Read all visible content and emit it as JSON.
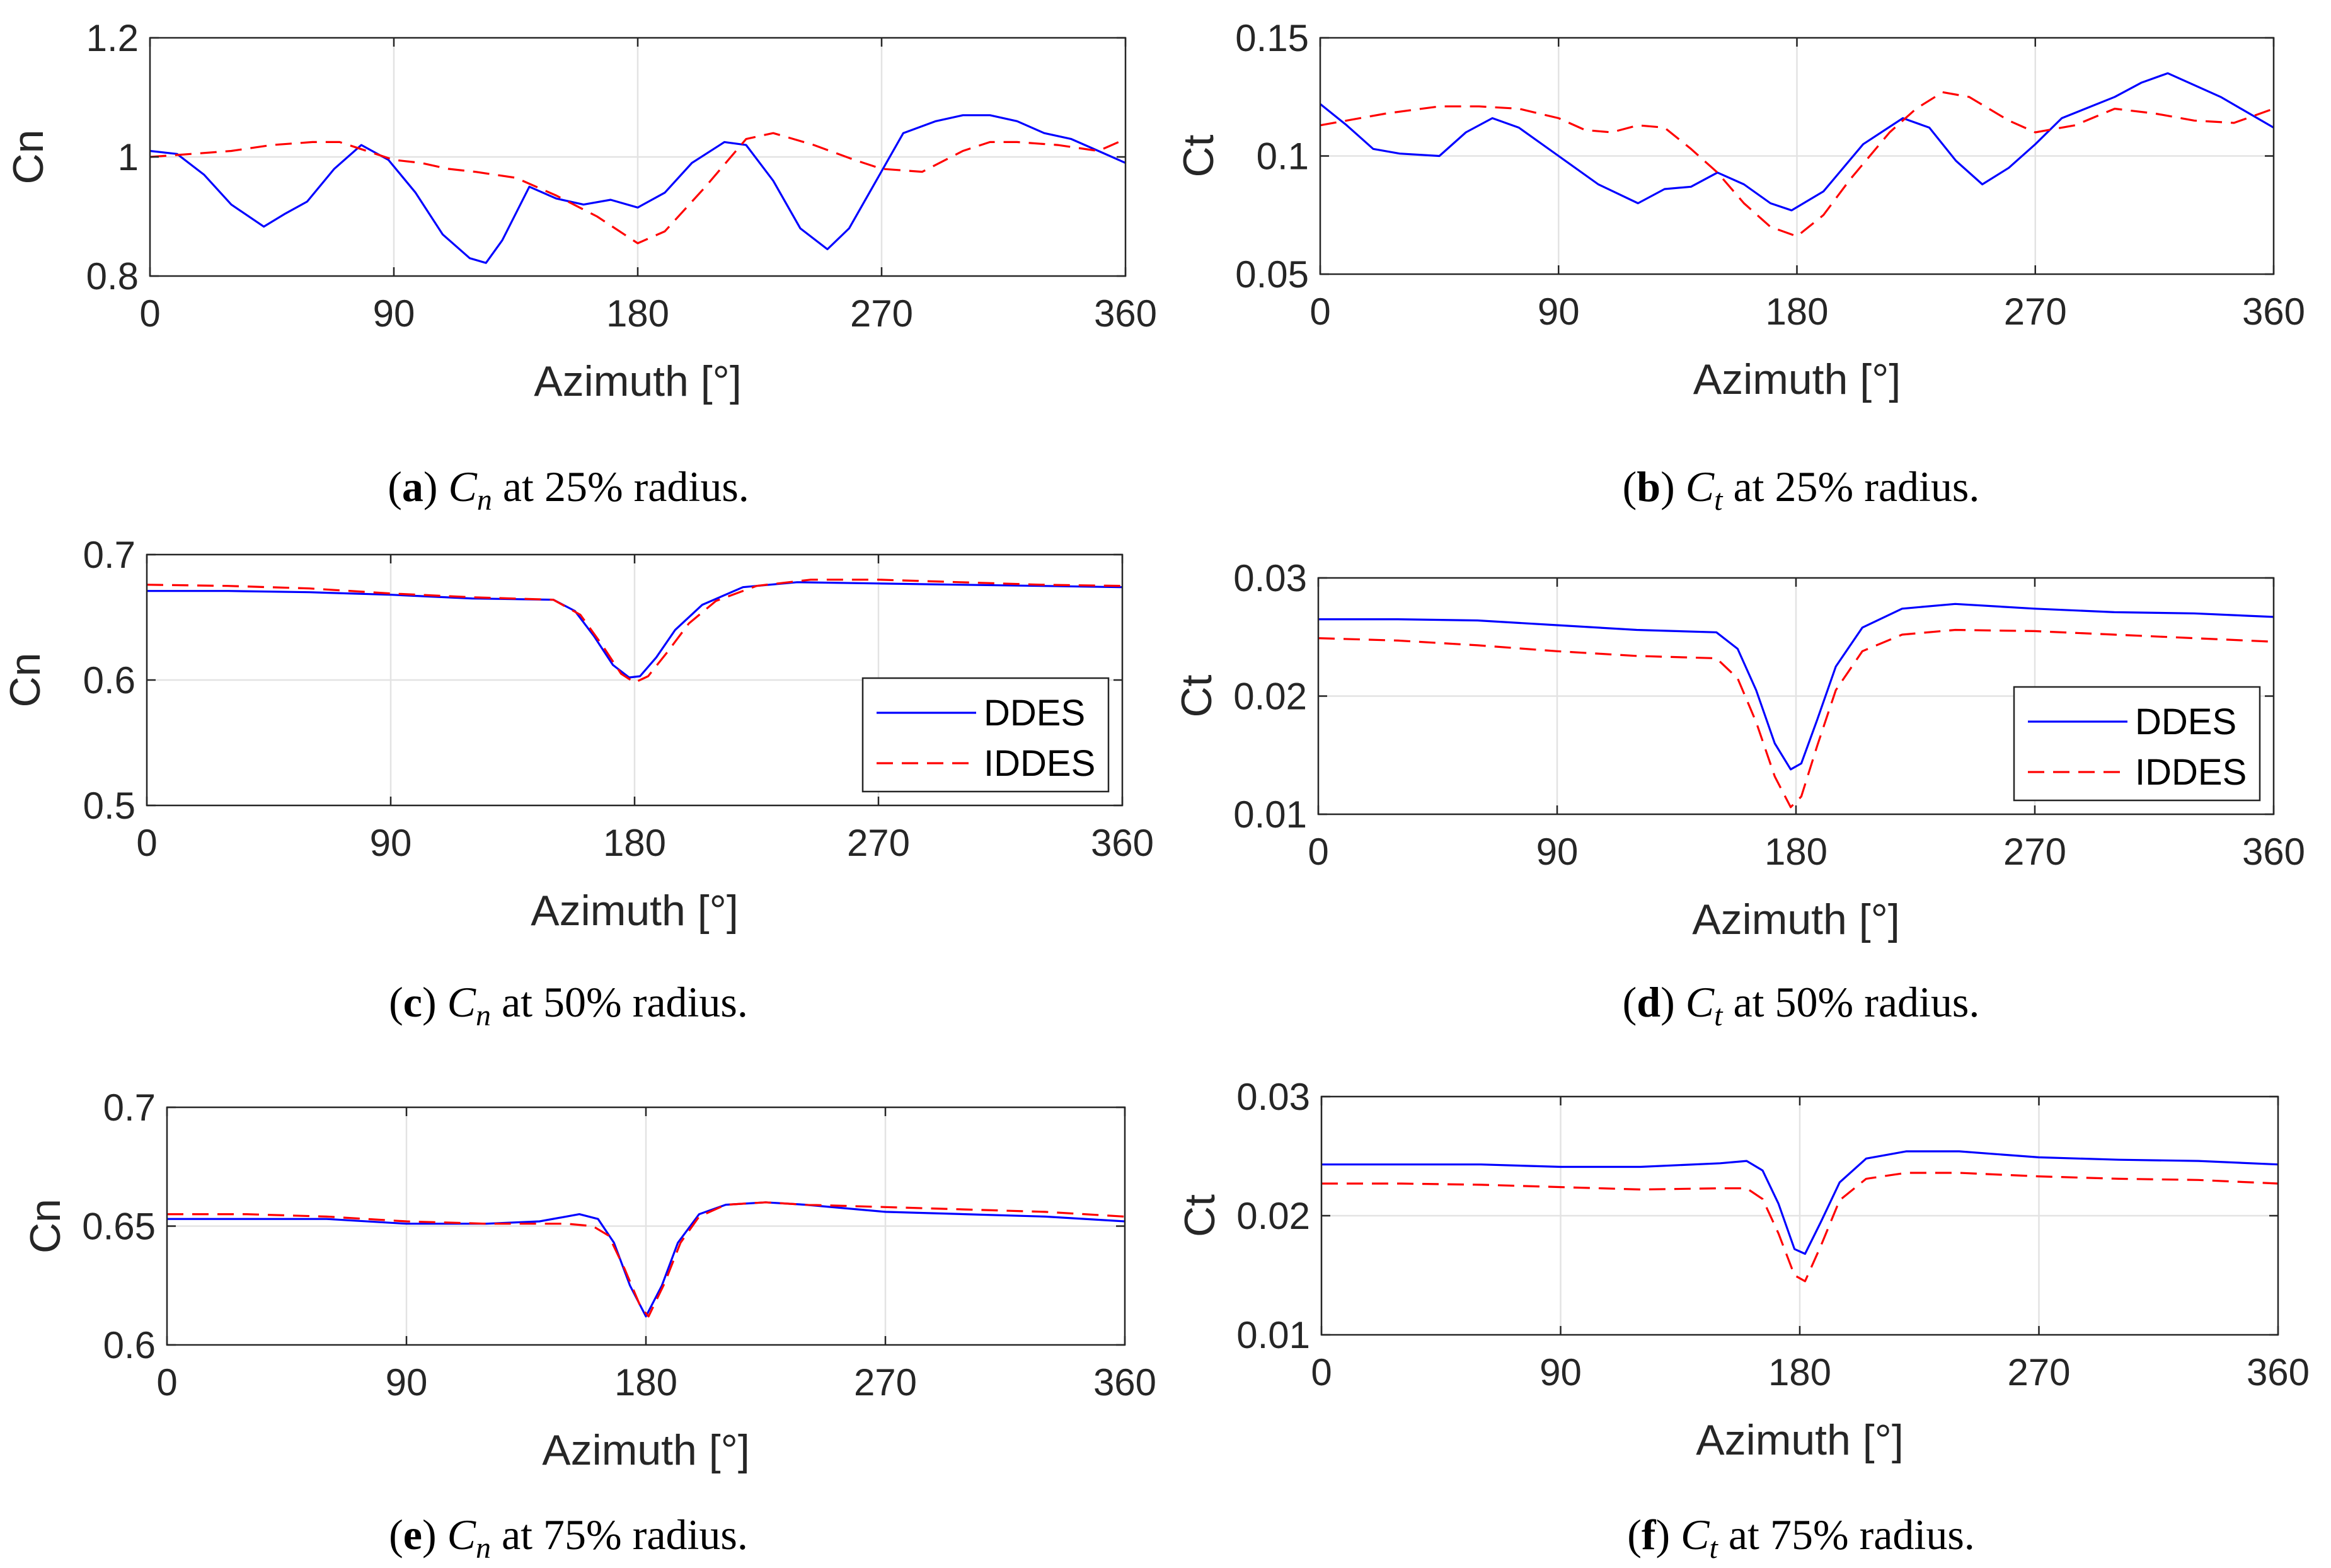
{
  "colors": {
    "ddes": "#0000ff",
    "iddes": "#ff0000",
    "grid": "#e3e3e3",
    "axis": "#262626"
  },
  "legend_entries": [
    "DDES",
    "IDDES"
  ],
  "chart_data": [
    {
      "id": "a",
      "type": "line",
      "caption": {
        "letter": "a",
        "symbol": "C",
        "sub": "n",
        "rest": " at 25% radius."
      },
      "xlabel": "Azimuth [°]",
      "ylabel": "Cn",
      "xlim": [
        0,
        360
      ],
      "ylim": [
        0.8,
        1.2
      ],
      "xticks": [
        "0",
        "90",
        "180",
        "270",
        "360"
      ],
      "yticks": [
        "0.8",
        "1",
        "1.2"
      ],
      "ytick_values": [
        0.8,
        1.0,
        1.2
      ],
      "legend": null,
      "series": [
        {
          "name": "DDES",
          "style": "solid",
          "x": [
            0,
            10,
            20,
            30,
            42,
            50,
            58,
            68,
            78,
            88,
            98,
            108,
            118,
            124,
            130,
            140,
            150,
            160,
            170,
            180,
            190,
            200,
            212,
            220,
            230,
            240,
            250,
            258,
            268,
            278,
            290,
            300,
            310,
            320,
            330,
            340,
            350,
            360
          ],
          "y": [
            1.01,
            1.005,
            0.97,
            0.92,
            0.883,
            0.905,
            0.925,
            0.98,
            1.02,
            0.995,
            0.94,
            0.87,
            0.83,
            0.822,
            0.86,
            0.95,
            0.93,
            0.92,
            0.928,
            0.915,
            0.94,
            0.99,
            1.025,
            1.02,
            0.96,
            0.88,
            0.845,
            0.88,
            0.96,
            1.04,
            1.06,
            1.07,
            1.07,
            1.06,
            1.04,
            1.03,
            1.01,
            0.99
          ]
        },
        {
          "name": "IDDES",
          "style": "dashed",
          "x": [
            0,
            15,
            30,
            45,
            60,
            70,
            80,
            90,
            100,
            110,
            120,
            135,
            150,
            165,
            180,
            190,
            205,
            220,
            230,
            245,
            260,
            270,
            285,
            300,
            310,
            320,
            335,
            350,
            360
          ],
          "y": [
            1.0,
            1.005,
            1.01,
            1.02,
            1.025,
            1.025,
            1.01,
            0.995,
            0.99,
            0.98,
            0.975,
            0.965,
            0.935,
            0.9,
            0.855,
            0.875,
            0.95,
            1.03,
            1.04,
            1.02,
            0.995,
            0.98,
            0.975,
            1.01,
            1.025,
            1.025,
            1.02,
            1.01,
            1.03
          ]
        }
      ]
    },
    {
      "id": "b",
      "type": "line",
      "caption": {
        "letter": "b",
        "symbol": "C",
        "sub": "t",
        "rest": " at 25% radius."
      },
      "xlabel": "Azimuth [°]",
      "ylabel": "Ct",
      "xlim": [
        0,
        360
      ],
      "ylim": [
        0.05,
        0.15
      ],
      "xticks": [
        "0",
        "90",
        "180",
        "270",
        "360"
      ],
      "yticks": [
        "0.05",
        "0.1",
        "0.15"
      ],
      "ytick_values": [
        0.05,
        0.1,
        0.15
      ],
      "legend": null,
      "series": [
        {
          "name": "DDES",
          "style": "solid",
          "x": [
            0,
            10,
            20,
            30,
            45,
            55,
            65,
            75,
            90,
            105,
            120,
            130,
            140,
            150,
            160,
            170,
            178,
            190,
            205,
            220,
            230,
            240,
            250,
            260,
            270,
            280,
            300,
            310,
            320,
            340,
            360
          ],
          "y": [
            0.122,
            0.113,
            0.103,
            0.101,
            0.1,
            0.11,
            0.116,
            0.112,
            0.1,
            0.088,
            0.08,
            0.086,
            0.087,
            0.093,
            0.088,
            0.08,
            0.077,
            0.085,
            0.105,
            0.116,
            0.112,
            0.098,
            0.088,
            0.095,
            0.105,
            0.116,
            0.125,
            0.131,
            0.135,
            0.125,
            0.112
          ]
        },
        {
          "name": "IDDES",
          "style": "dashed",
          "x": [
            0,
            10,
            25,
            45,
            60,
            75,
            90,
            100,
            110,
            120,
            130,
            140,
            150,
            160,
            170,
            180,
            190,
            200,
            215,
            225,
            235,
            245,
            260,
            270,
            285,
            300,
            315,
            330,
            345,
            360
          ],
          "y": [
            0.113,
            0.115,
            0.118,
            0.121,
            0.121,
            0.12,
            0.116,
            0.111,
            0.11,
            0.113,
            0.112,
            0.103,
            0.093,
            0.08,
            0.07,
            0.066,
            0.075,
            0.09,
            0.11,
            0.12,
            0.127,
            0.125,
            0.115,
            0.11,
            0.113,
            0.12,
            0.118,
            0.115,
            0.114,
            0.12
          ]
        }
      ]
    },
    {
      "id": "c",
      "type": "line",
      "caption": {
        "letter": "c",
        "symbol": "C",
        "sub": "n",
        "rest": " at 50% radius."
      },
      "xlabel": "Azimuth [°]",
      "ylabel": "Cn",
      "xlim": [
        0,
        360
      ],
      "ylim": [
        0.5,
        0.7
      ],
      "xticks": [
        "0",
        "90",
        "180",
        "270",
        "360"
      ],
      "yticks": [
        "0.5",
        "0.6",
        "0.7"
      ],
      "ytick_values": [
        0.5,
        0.6,
        0.7
      ],
      "legend": "lower-right",
      "series": [
        {
          "name": "DDES",
          "style": "solid",
          "x": [
            0,
            30,
            60,
            90,
            120,
            150,
            158,
            165,
            172,
            178,
            182,
            188,
            195,
            205,
            220,
            240,
            270,
            300,
            330,
            360
          ],
          "y": [
            0.671,
            0.671,
            0.67,
            0.668,
            0.665,
            0.664,
            0.655,
            0.635,
            0.612,
            0.602,
            0.603,
            0.618,
            0.64,
            0.66,
            0.674,
            0.678,
            0.677,
            0.676,
            0.675,
            0.674
          ]
        },
        {
          "name": "IDDES",
          "style": "dashed",
          "x": [
            0,
            30,
            60,
            90,
            120,
            150,
            160,
            168,
            175,
            180,
            185,
            192,
            200,
            210,
            225,
            245,
            270,
            300,
            330,
            360
          ],
          "y": [
            0.676,
            0.675,
            0.673,
            0.669,
            0.666,
            0.664,
            0.652,
            0.628,
            0.605,
            0.598,
            0.603,
            0.622,
            0.645,
            0.663,
            0.675,
            0.68,
            0.68,
            0.678,
            0.676,
            0.675
          ]
        }
      ]
    },
    {
      "id": "d",
      "type": "line",
      "caption": {
        "letter": "d",
        "symbol": "C",
        "sub": "t",
        "rest": " at 50% radius."
      },
      "xlabel": "Azimuth [°]",
      "ylabel": "Ct",
      "xlim": [
        0,
        360
      ],
      "ylim": [
        0.01,
        0.03
      ],
      "xticks": [
        "0",
        "90",
        "180",
        "270",
        "360"
      ],
      "yticks": [
        "0.01",
        "0.02",
        "0.03"
      ],
      "ytick_values": [
        0.01,
        0.02,
        0.03
      ],
      "legend": "lower-right",
      "series": [
        {
          "name": "DDES",
          "style": "solid",
          "x": [
            0,
            30,
            60,
            90,
            120,
            150,
            158,
            165,
            172,
            178,
            182,
            188,
            195,
            205,
            220,
            240,
            270,
            300,
            330,
            360
          ],
          "y": [
            0.0265,
            0.0265,
            0.0264,
            0.026,
            0.0256,
            0.0254,
            0.024,
            0.0205,
            0.016,
            0.0138,
            0.0143,
            0.018,
            0.0225,
            0.0258,
            0.0274,
            0.0278,
            0.0274,
            0.0271,
            0.027,
            0.0267
          ]
        },
        {
          "name": "IDDES",
          "style": "dashed",
          "x": [
            0,
            30,
            60,
            90,
            120,
            150,
            158,
            165,
            172,
            178,
            182,
            188,
            195,
            205,
            220,
            240,
            270,
            300,
            330,
            360
          ],
          "y": [
            0.0249,
            0.0247,
            0.0243,
            0.0238,
            0.0234,
            0.0232,
            0.0215,
            0.0178,
            0.0132,
            0.0106,
            0.0115,
            0.0158,
            0.0205,
            0.0238,
            0.0252,
            0.0256,
            0.0255,
            0.0252,
            0.0249,
            0.0246
          ]
        }
      ]
    },
    {
      "id": "e",
      "type": "line",
      "caption": {
        "letter": "e",
        "symbol": "C",
        "sub": "n",
        "rest": " at 75% radius."
      },
      "xlabel": "Azimuth [°]",
      "ylabel": "Cn",
      "xlim": [
        0,
        360
      ],
      "ylim": [
        0.6,
        0.7
      ],
      "xticks": [
        "0",
        "90",
        "180",
        "270",
        "360"
      ],
      "yticks": [
        "0.6",
        "0.65",
        "0.7"
      ],
      "ytick_values": [
        0.6,
        0.65,
        0.7
      ],
      "legend": null,
      "series": [
        {
          "name": "DDES",
          "style": "solid",
          "x": [
            0,
            30,
            60,
            90,
            120,
            140,
            155,
            162,
            168,
            174,
            180,
            186,
            192,
            200,
            210,
            225,
            240,
            270,
            300,
            330,
            360
          ],
          "y": [
            0.653,
            0.653,
            0.653,
            0.651,
            0.651,
            0.652,
            0.655,
            0.653,
            0.643,
            0.625,
            0.612,
            0.625,
            0.643,
            0.655,
            0.659,
            0.66,
            0.659,
            0.656,
            0.655,
            0.654,
            0.652
          ]
        },
        {
          "name": "IDDES",
          "style": "dashed",
          "x": [
            0,
            30,
            60,
            90,
            120,
            150,
            160,
            166,
            172,
            178,
            181,
            187,
            193,
            200,
            210,
            225,
            240,
            270,
            300,
            330,
            360
          ],
          "y": [
            0.655,
            0.655,
            0.654,
            0.652,
            0.651,
            0.651,
            0.65,
            0.646,
            0.632,
            0.616,
            0.612,
            0.626,
            0.643,
            0.654,
            0.659,
            0.66,
            0.659,
            0.658,
            0.657,
            0.656,
            0.654
          ]
        }
      ]
    },
    {
      "id": "f",
      "type": "line",
      "caption": {
        "letter": "f",
        "symbol": "C",
        "sub": "t",
        "rest": " at 75% radius."
      },
      "xlabel": "Azimuth [°]",
      "ylabel": "Ct",
      "xlim": [
        0,
        360
      ],
      "ylim": [
        0.01,
        0.03
      ],
      "xticks": [
        "0",
        "90",
        "180",
        "270",
        "360"
      ],
      "yticks": [
        "0.01",
        "0.02",
        "0.03"
      ],
      "ytick_values": [
        0.01,
        0.02,
        0.03
      ],
      "legend": null,
      "series": [
        {
          "name": "DDES",
          "style": "solid",
          "x": [
            0,
            30,
            60,
            90,
            120,
            150,
            160,
            166,
            172,
            178,
            182,
            188,
            195,
            205,
            220,
            240,
            270,
            300,
            330,
            360
          ],
          "y": [
            0.0243,
            0.0243,
            0.0243,
            0.0241,
            0.0241,
            0.0244,
            0.0246,
            0.0238,
            0.021,
            0.0172,
            0.0168,
            0.0195,
            0.0228,
            0.0248,
            0.0254,
            0.0254,
            0.0249,
            0.0247,
            0.0246,
            0.0243
          ]
        },
        {
          "name": "IDDES",
          "style": "dashed",
          "x": [
            0,
            30,
            60,
            90,
            120,
            150,
            160,
            166,
            172,
            178,
            182,
            188,
            195,
            205,
            220,
            240,
            270,
            300,
            330,
            360
          ],
          "y": [
            0.0227,
            0.0227,
            0.0226,
            0.0224,
            0.0222,
            0.0223,
            0.0223,
            0.0214,
            0.0185,
            0.015,
            0.0145,
            0.0175,
            0.0213,
            0.0231,
            0.0236,
            0.0236,
            0.0233,
            0.0231,
            0.023,
            0.0227
          ]
        }
      ]
    }
  ]
}
